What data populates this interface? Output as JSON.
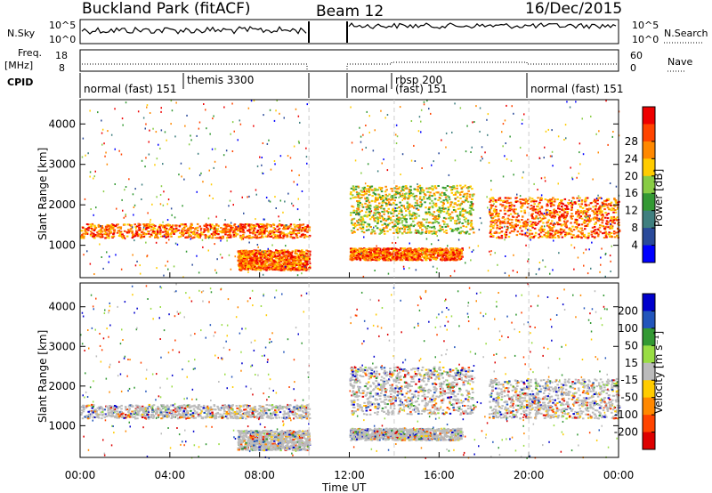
{
  "header": {
    "station": "Buckland Park (fitACF)",
    "beam": "Beam 12",
    "date": "16/Dec/2015"
  },
  "panels": {
    "nsky_label": "N.Sky",
    "nsky_ticks": [
      "10^5",
      "10^0"
    ],
    "nsearch_label": "N.Search",
    "freq_label_line1": "Freq.",
    "freq_label_line2": "[MHz]",
    "freq_ticks": [
      "18",
      "8"
    ],
    "nave_label": "Nave",
    "nave_ticks": [
      "60",
      "0"
    ],
    "cpid_label": "CPID",
    "cpid_segments": [
      {
        "text": "normal (fast) 151",
        "raised": false
      },
      {
        "text": "themis 3300",
        "raised": true
      },
      {
        "text": "normal",
        "raised": false
      },
      {
        "text": "rbsp 200",
        "raised": true
      },
      {
        "text": "(fast) 151",
        "raised": false
      },
      {
        "text": "normal (fast) 151",
        "raised": false
      }
    ]
  },
  "chart_data": [
    {
      "type": "heatmap",
      "title": "",
      "variable": "Power",
      "ylabel": "Slant Range [km]",
      "xlabel": "Time UT",
      "x_ticks": [
        "00:00",
        "04:00",
        "08:00",
        "12:00",
        "16:00",
        "20:00",
        "00:00"
      ],
      "y_ticks": [
        "1000",
        "2000",
        "3000",
        "4000"
      ],
      "ylim": [
        200,
        4600
      ],
      "xlim_hours": [
        0,
        24
      ],
      "data_gap_hours": [
        10.2,
        12.0
      ],
      "colorbar": {
        "label": "Power [dB]",
        "ticks": [
          "4",
          "8",
          "12",
          "16",
          "20",
          "24",
          "28"
        ],
        "colors": [
          "#0000ff",
          "#2a4a9a",
          "#3f7f7f",
          "#339933",
          "#88cc44",
          "#ffcc00",
          "#ff8800",
          "#ff4400",
          "#ee0000"
        ]
      },
      "echo_bands": [
        {
          "name": "main echo",
          "start_h": 0,
          "end_h": 10.2,
          "range_km": [
            1200,
            1550
          ],
          "level": "high"
        },
        {
          "name": "near echo",
          "start_h": 7.0,
          "end_h": 10.2,
          "range_km": [
            400,
            900
          ],
          "level": "high"
        },
        {
          "name": "main echo",
          "start_h": 12.0,
          "end_h": 17.5,
          "range_km": [
            1300,
            2500
          ],
          "level": "medium"
        },
        {
          "name": "near echo",
          "start_h": 12.0,
          "end_h": 17.0,
          "range_km": [
            650,
            950
          ],
          "level": "high"
        },
        {
          "name": "evening echo",
          "start_h": 18.2,
          "end_h": 24,
          "range_km": [
            1200,
            2200
          ],
          "level": "high"
        }
      ]
    },
    {
      "type": "heatmap",
      "title": "",
      "variable": "Velocity",
      "ylabel": "Slant Range [km]",
      "xlabel": "Time UT",
      "x_ticks": [
        "00:00",
        "04:00",
        "08:00",
        "12:00",
        "16:00",
        "20:00",
        "00:00"
      ],
      "y_ticks": [
        "1000",
        "2000",
        "3000",
        "4000"
      ],
      "ylim": [
        200,
        4600
      ],
      "xlim_hours": [
        0,
        24
      ],
      "data_gap_hours": [
        10.2,
        12.0
      ],
      "colorbar": {
        "label": "Velocity [m s⁻¹]",
        "ticks": [
          "200",
          "100",
          "50",
          "15",
          "-15",
          "-50",
          "-100",
          "-200"
        ],
        "colors": [
          "#0000cc",
          "#2255bb",
          "#339933",
          "#99dd44",
          "#bbbbbb",
          "#ffcc00",
          "#ff8800",
          "#ff4400",
          "#dd0000"
        ]
      }
    }
  ]
}
